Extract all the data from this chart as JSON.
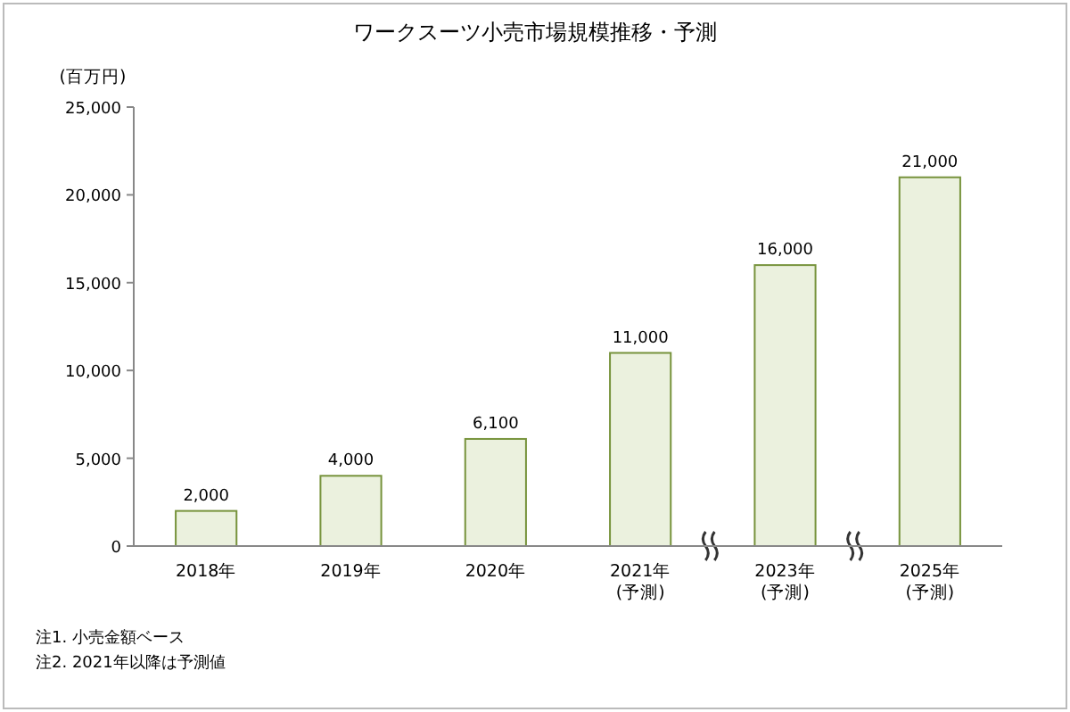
{
  "chart_data": {
    "type": "bar",
    "title": "ワークスーツ小売市場規模推移・予測",
    "ylabel": "(百万円)",
    "categories": [
      "2018年",
      "2019年",
      "2020年",
      "2021年\n(予測)",
      "2023年\n(予測)",
      "2025年\n(予測)"
    ],
    "values": [
      2000,
      4000,
      6100,
      11000,
      16000,
      21000
    ],
    "color": "#ebf1de",
    "value_labels": [
      "2,000",
      "4,000",
      "6,100",
      "11,000",
      "16,000",
      "21,000"
    ],
    "ylim": [
      0,
      25000
    ],
    "yticks": [
      {
        "value": 0,
        "label": "0"
      },
      {
        "value": 5000,
        "label": "5,000"
      },
      {
        "value": 10000,
        "label": "10,000"
      },
      {
        "value": 15000,
        "label": "15,000"
      },
      {
        "value": 20000,
        "label": "20,000"
      },
      {
        "value": 25000,
        "label": "25,000"
      }
    ],
    "grid": false,
    "annotations": [
      "注1. 小売金額ベース",
      "注2. 2021年以降は予測値"
    ]
  }
}
